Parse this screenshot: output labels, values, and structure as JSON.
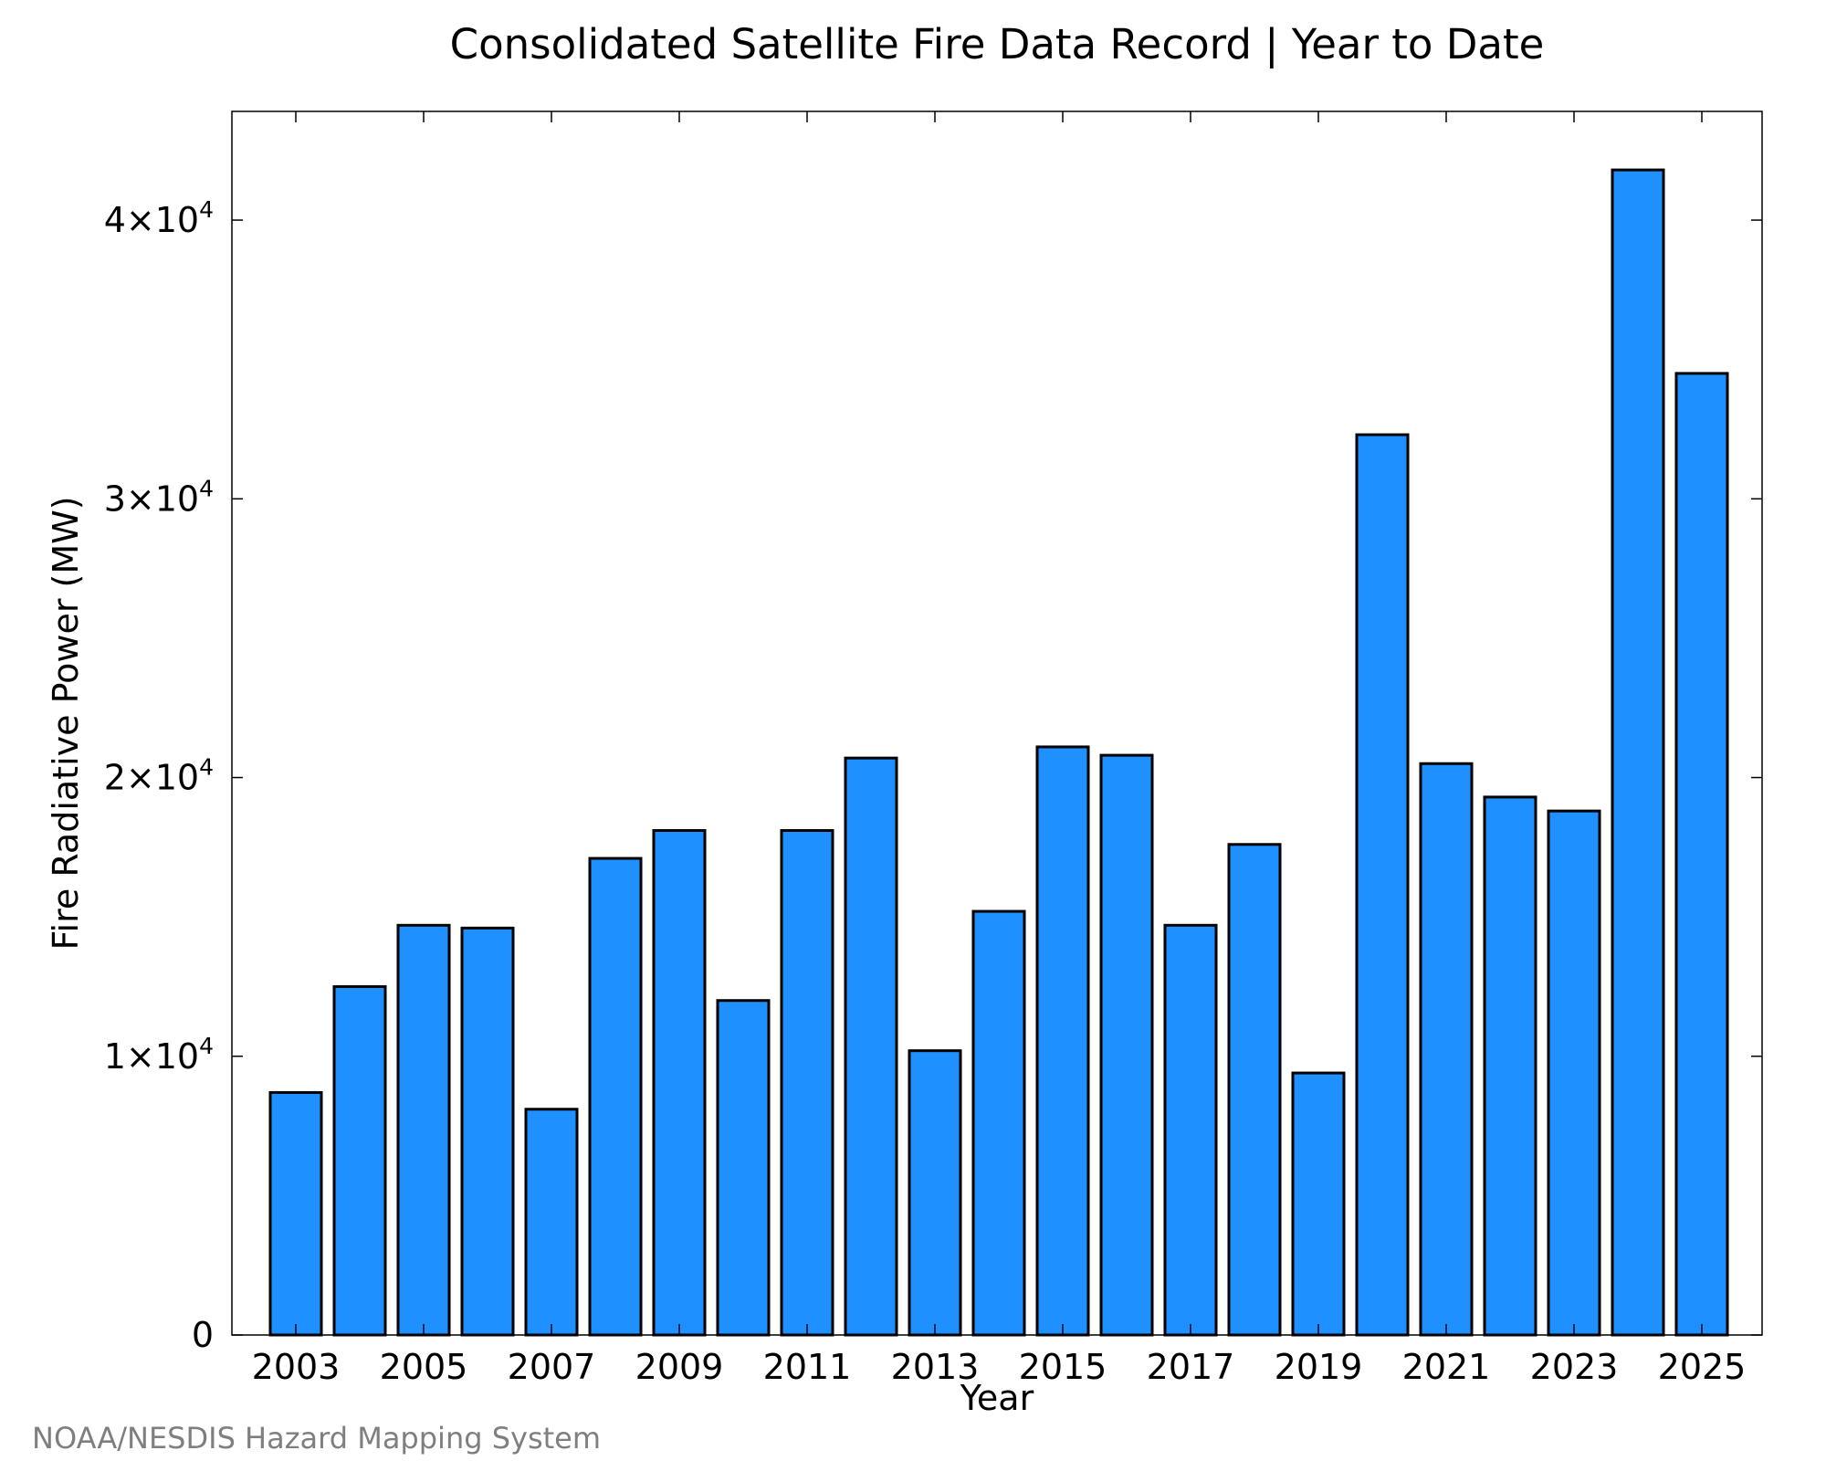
{
  "chart_data": {
    "type": "bar",
    "title": "Consolidated Satellite Fire Data Record | Year to Date",
    "xlabel": "Year",
    "ylabel": "Fire Radiative Power (MW)",
    "categories": [
      "2003",
      "2004",
      "2005",
      "2006",
      "2007",
      "2008",
      "2009",
      "2010",
      "2011",
      "2012",
      "2013",
      "2014",
      "2015",
      "2016",
      "2017",
      "2018",
      "2019",
      "2020",
      "2021",
      "2022",
      "2023",
      "2024",
      "2025"
    ],
    "values": [
      8700,
      12500,
      14700,
      14600,
      8100,
      17100,
      18100,
      12000,
      18100,
      20700,
      10200,
      15200,
      21100,
      20800,
      14700,
      17600,
      9400,
      32300,
      20500,
      19300,
      18800,
      41800,
      34500
    ],
    "x_tick_labels": [
      "2003",
      "2005",
      "2007",
      "2009",
      "2011",
      "2013",
      "2015",
      "2017",
      "2019",
      "2021",
      "2023",
      "2025"
    ],
    "y_ticks": [
      {
        "value": 0,
        "label": "0"
      },
      {
        "value": 10000,
        "label": "1×10",
        "exp": "4"
      },
      {
        "value": 20000,
        "label": "2×10",
        "exp": "4"
      },
      {
        "value": 30000,
        "label": "3×10",
        "exp": "4"
      },
      {
        "value": 40000,
        "label": "4×10",
        "exp": "4"
      }
    ],
    "ylim": [
      0,
      43900
    ],
    "bar_color": "#1e90ff",
    "bar_edge_color": "#000000",
    "grid": false,
    "legend": false
  },
  "source_note": "NOAA/NESDIS Hazard Mapping System"
}
